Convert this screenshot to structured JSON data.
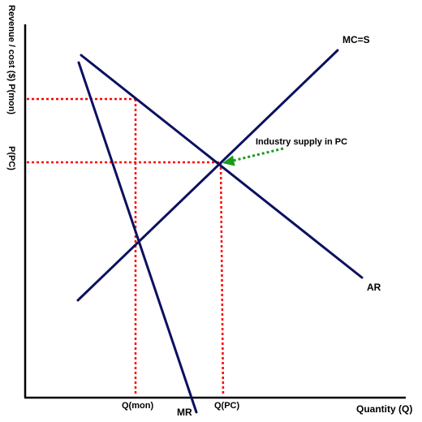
{
  "labels": {
    "y_axis": "Revenue / cost ($) P(mon)",
    "y_tick_pc": "P(PC)",
    "x_axis": "Quantity (Q)",
    "x_tick_mon": "Q(mon)",
    "x_tick_pc": "Q(PC)",
    "curve_mc": "MC=S",
    "curve_ar": "AR",
    "curve_mr": "MR",
    "annotation": "Industry supply in PC"
  },
  "colors": {
    "curve": "#0b1060",
    "axis": "#000000",
    "guide": "#ff0000",
    "arrow": "#1a9a1a"
  }
}
